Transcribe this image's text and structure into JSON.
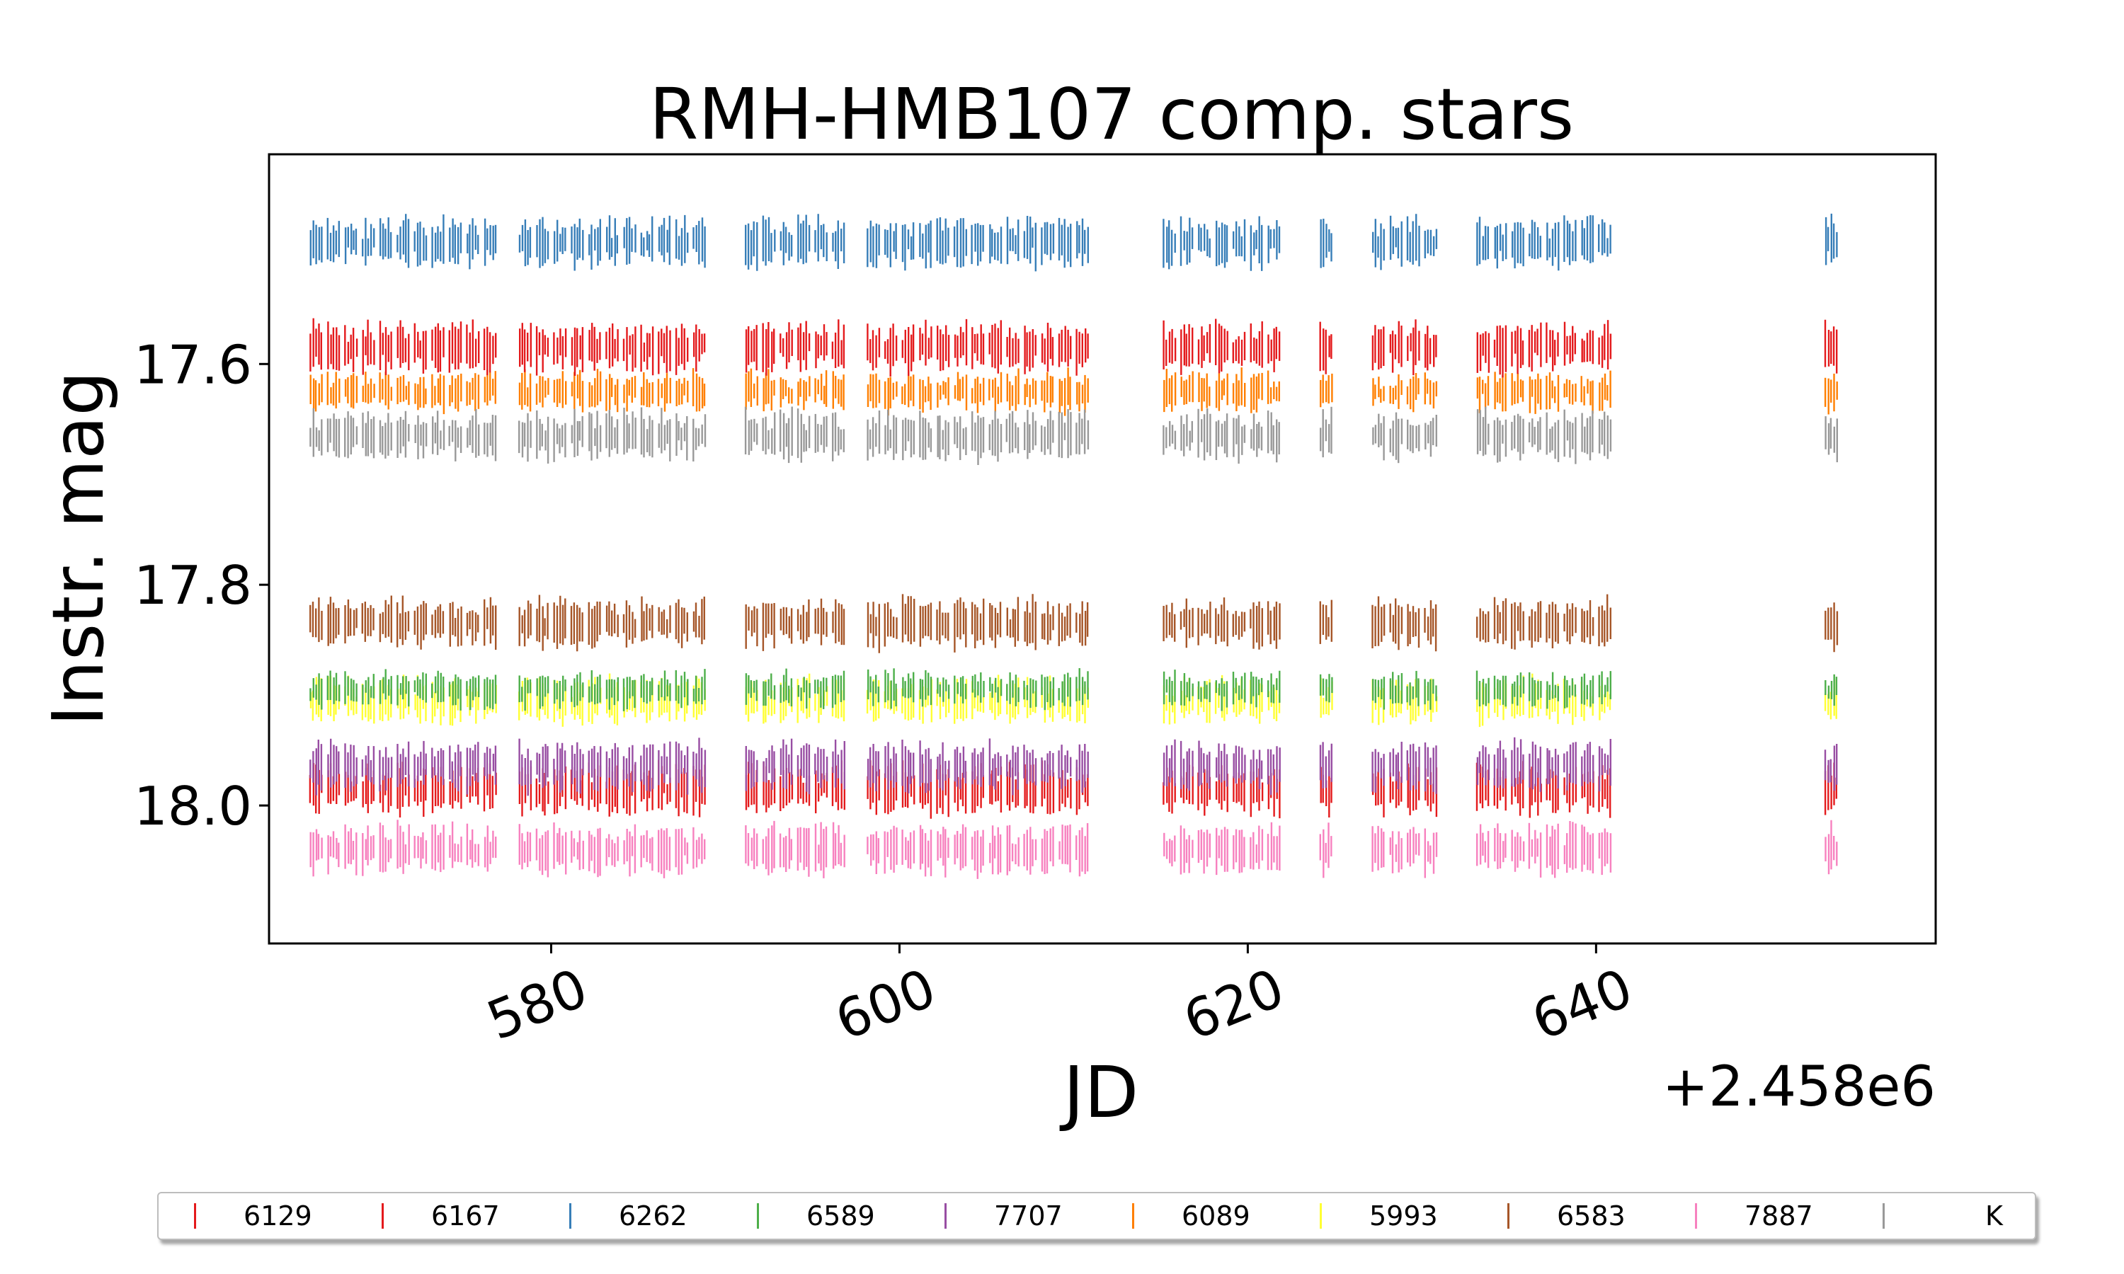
{
  "chart_data": {
    "type": "scatter",
    "title": "RMH-HMB107 comp. stars",
    "xlabel": "JD",
    "ylabel": "Instr. mag",
    "x_offset_label": "+2.458e6",
    "xlim": [
      563.8,
      659.5
    ],
    "ylim": [
      18.125,
      17.41
    ],
    "y_inverted": true,
    "x_ticks": [
      580,
      600,
      620,
      640
    ],
    "x_tick_labels": [
      "580",
      "600",
      "620",
      "640"
    ],
    "y_ticks": [
      17.6,
      17.8,
      18.0
    ],
    "y_tick_labels": [
      "17.6",
      "17.8",
      "18.0"
    ],
    "marker": "vertical line",
    "observation_nights": [
      566.5,
      567.5,
      568.5,
      569.5,
      570.5,
      571.5,
      572.5,
      573.5,
      574.5,
      575.5,
      576.5,
      578.5,
      579.5,
      580.5,
      581.5,
      582.5,
      583.5,
      584.5,
      585.5,
      586.5,
      587.5,
      588.5,
      591.5,
      592.5,
      593.5,
      594.5,
      595.5,
      596.5,
      598.5,
      599.5,
      600.5,
      601.5,
      602.5,
      603.5,
      604.5,
      605.5,
      606.5,
      607.5,
      608.5,
      609.5,
      610.5,
      615.5,
      616.5,
      617.5,
      618.5,
      619.5,
      620.5,
      621.5,
      624.5,
      627.5,
      628.5,
      629.5,
      630.5,
      633.5,
      634.5,
      635.5,
      636.5,
      637.5,
      638.5,
      639.5,
      640.5,
      653.5
    ],
    "series": [
      {
        "name": "6129",
        "color": "#e41a1c",
        "mag_center": 17.985,
        "spread": 0.045
      },
      {
        "name": "6167",
        "color": "#e41a1c",
        "mag_center": 17.585,
        "spread": 0.045
      },
      {
        "name": "6262",
        "color": "#377eb8",
        "mag_center": 17.49,
        "spread": 0.045
      },
      {
        "name": "6589",
        "color": "#4daf4a",
        "mag_center": 17.895,
        "spread": 0.03
      },
      {
        "name": "7707",
        "color": "#984ea3",
        "mag_center": 17.965,
        "spread": 0.045
      },
      {
        "name": "6089",
        "color": "#ff7f00",
        "mag_center": 17.625,
        "spread": 0.035
      },
      {
        "name": "5993",
        "color": "#ffff33",
        "mag_center": 17.905,
        "spread": 0.04
      },
      {
        "name": "6583",
        "color": "#a65628",
        "mag_center": 17.835,
        "spread": 0.045
      },
      {
        "name": "7887",
        "color": "#f781bf",
        "mag_center": 18.04,
        "spread": 0.045
      },
      {
        "name": "K",
        "color": "#999999",
        "mag_center": 17.665,
        "spread": 0.045
      }
    ],
    "grid": false,
    "legend_position": "bottom"
  }
}
